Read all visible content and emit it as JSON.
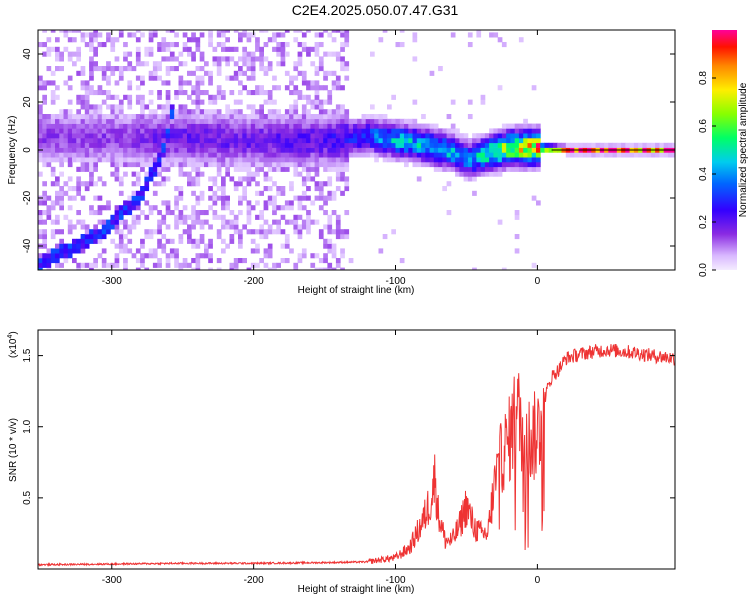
{
  "title": "C2E4.2025.050.07.47.G31",
  "chart_data": [
    {
      "type": "heatmap",
      "xlabel": "Height of straight line (km)",
      "ylabel": "Frequency (Hz)",
      "xlim": [
        -352,
        97
      ],
      "ylim": [
        -50,
        50
      ],
      "xticks": [
        -300,
        -200,
        -100,
        0
      ],
      "yticks": [
        -40,
        -20,
        0,
        20,
        40
      ],
      "colorbar": {
        "label": "Normalized spectral amplitude",
        "range": [
          0.0,
          1.0
        ],
        "ticks": [
          "0.0",
          "0.2",
          "0.4",
          "0.6",
          "0.8"
        ],
        "tick_values": [
          0.0,
          0.2,
          0.4,
          0.6,
          0.8
        ]
      },
      "ridge": {
        "x": [
          -350,
          -300,
          -250,
          -200,
          -150,
          -120,
          -100,
          -80,
          -60,
          -50,
          -40,
          -20,
          0,
          20,
          50,
          97
        ],
        "y": [
          5,
          5,
          5,
          4,
          4,
          6,
          4,
          2,
          -1,
          -4,
          -2,
          1,
          1,
          0,
          0,
          0
        ],
        "amplitude": [
          0.15,
          0.15,
          0.2,
          0.2,
          0.22,
          0.35,
          0.45,
          0.45,
          0.45,
          0.4,
          0.5,
          0.7,
          0.85,
          0.97,
          0.97,
          0.97
        ]
      },
      "secondary_track": {
        "x": [
          -355,
          -310,
          -280,
          -263,
          -258
        ],
        "y": [
          -48,
          -35,
          -18,
          2,
          20
        ]
      }
    },
    {
      "type": "line",
      "xlabel": "Height of straight line (km)",
      "ylabel": "SNR (10 * v/v)",
      "exponent_label": "(x10",
      "exponent_power": "4",
      "exponent_close": ")",
      "xlim": [
        -352,
        97
      ],
      "ylim": [
        0,
        16800
      ],
      "xticks": [
        -300,
        -200,
        -100,
        0
      ],
      "yticks": [
        5000,
        10000,
        15000
      ],
      "ytick_labels": [
        "0.5",
        "1.0",
        "1.5"
      ],
      "series": [
        {
          "color": "#ee3333",
          "x": [
            -352,
            -300,
            -250,
            -200,
            -150,
            -120,
            -100,
            -90,
            -80,
            -75,
            -72,
            -70,
            -65,
            -60,
            -55,
            -50,
            -45,
            -40,
            -35,
            -30,
            -25,
            -20,
            -15,
            -10,
            -5,
            0,
            5,
            10,
            15,
            20,
            30,
            40,
            50,
            60,
            70,
            80,
            90,
            97
          ],
          "y": [
            300,
            350,
            400,
            400,
            450,
            500,
            800,
            1500,
            3500,
            5000,
            6500,
            4000,
            2000,
            2000,
            3000,
            4500,
            3000,
            2500,
            2500,
            6000,
            8000,
            9000,
            11000,
            10000,
            9000,
            9500,
            12000,
            13500,
            14000,
            14800,
            15100,
            15300,
            15400,
            15300,
            15200,
            15000,
            14900,
            14800
          ]
        }
      ]
    }
  ]
}
